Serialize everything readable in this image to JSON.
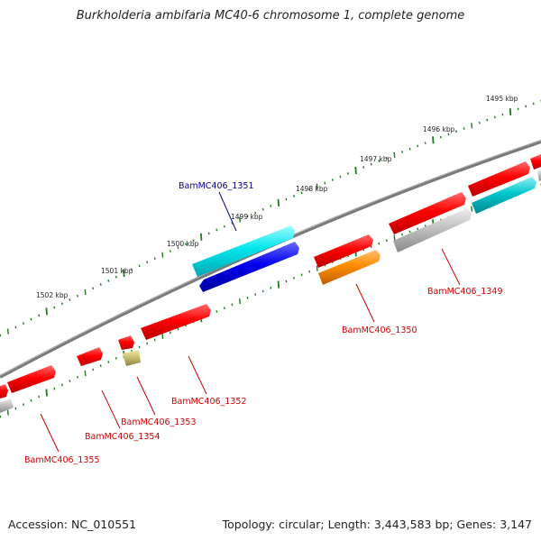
{
  "title": "Burkholderia ambifaria MC40-6 chromosome 1, complete genome",
  "footer": {
    "accession": "Accession: NC_010551",
    "topology": "Topology: circular; Length: 3,443,583 bp; Genes: 3,147"
  },
  "ticks": [
    {
      "label": "1495 kbp"
    },
    {
      "label": "1496 kbp"
    },
    {
      "label": "1497 kbp"
    },
    {
      "label": "1498 kbp"
    },
    {
      "label": "1499 kbp"
    },
    {
      "label": "1500 kbp"
    },
    {
      "label": "1501 kbp"
    },
    {
      "label": "1502 kbp"
    }
  ],
  "gene_labels": [
    {
      "name": "BamMC406_1351",
      "color": "#00008b"
    },
    {
      "name": "BamMC406_1349",
      "color": "#cc0000"
    },
    {
      "name": "BamMC406_1350",
      "color": "#cc0000"
    },
    {
      "name": "BamMC406_1352",
      "color": "#cc0000"
    },
    {
      "name": "BamMC406_1353",
      "color": "#cc0000"
    },
    {
      "name": "BamMC406_1354",
      "color": "#cc0000"
    },
    {
      "name": "BamMC406_1355",
      "color": "#cc0000"
    }
  ],
  "colors": {
    "backbone": "#7a7a7a",
    "tick": "#1f7a1f",
    "cds": "#ff0000",
    "cds_highlight": "#00e5ee",
    "cds_blue": "#0000ee",
    "cds_orange": "#ff8c00",
    "cds_gray": "#c0c0c0",
    "cds_teal": "#00c5cd",
    "cds_olive": "#c8c070"
  }
}
